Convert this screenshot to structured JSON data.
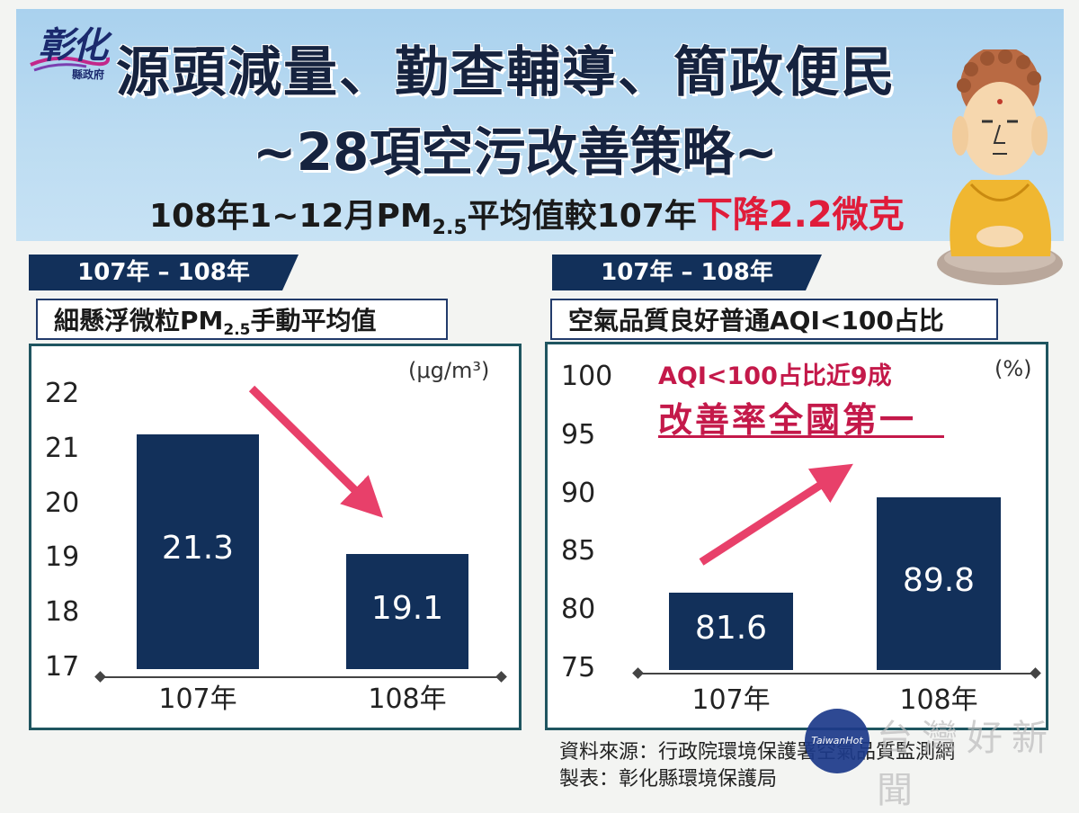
{
  "header": {
    "logo_main": "彰化",
    "logo_sub": "縣政府",
    "title_line1": "源頭減量、勤查輔導、簡政便民",
    "title_line2": "~28項空污改善策略~",
    "subtitle_pre": "108年1~12月PM",
    "subtitle_sub": "2.5",
    "subtitle_mid": "平均值較107年",
    "subtitle_highlight": "下降2.2微克"
  },
  "colors": {
    "bar": "#12305a",
    "arrow": "#e8406a",
    "accent_red": "#e01c3a"
  },
  "left": {
    "tab": "107年 – 108年",
    "caption_pre": "細懸浮微粒PM",
    "caption_sub": "2.5",
    "caption_post": "手動平均值",
    "unit": "(μg/m³)"
  },
  "right": {
    "tab": "107年 – 108年",
    "caption": "空氣品質良好普通AQI<100占比",
    "unit": "(%)",
    "note_line1": "AQI<100占比近9成",
    "note_line2": "改善率全國第一"
  },
  "chart_data": [
    {
      "type": "bar",
      "title": "細懸浮微粒PM2.5手動平均值",
      "ylabel": "μg/m³",
      "categories": [
        "107年",
        "108年"
      ],
      "values": [
        21.3,
        19.1
      ],
      "value_labels": [
        "21.3",
        "19.1"
      ],
      "ylim": [
        17,
        22
      ],
      "yticks": [
        "22",
        "21",
        "20",
        "19",
        "18",
        "17"
      ],
      "trend": "down"
    },
    {
      "type": "bar",
      "title": "空氣品質良好普通AQI<100占比",
      "ylabel": "%",
      "categories": [
        "107年",
        "108年"
      ],
      "values": [
        81.6,
        89.8
      ],
      "value_labels": [
        "81.6",
        "89.8"
      ],
      "ylim": [
        75,
        100
      ],
      "yticks": [
        "100",
        "95",
        "90",
        "85",
        "80",
        "75"
      ],
      "trend": "up"
    }
  ],
  "footer": {
    "source": "資料來源：行政院環境保護署空氣品質監測網",
    "made_by": "製表：彰化縣環境保護局",
    "watermark_badge": "TaiwanHot",
    "watermark_text": "台灣好新聞"
  }
}
